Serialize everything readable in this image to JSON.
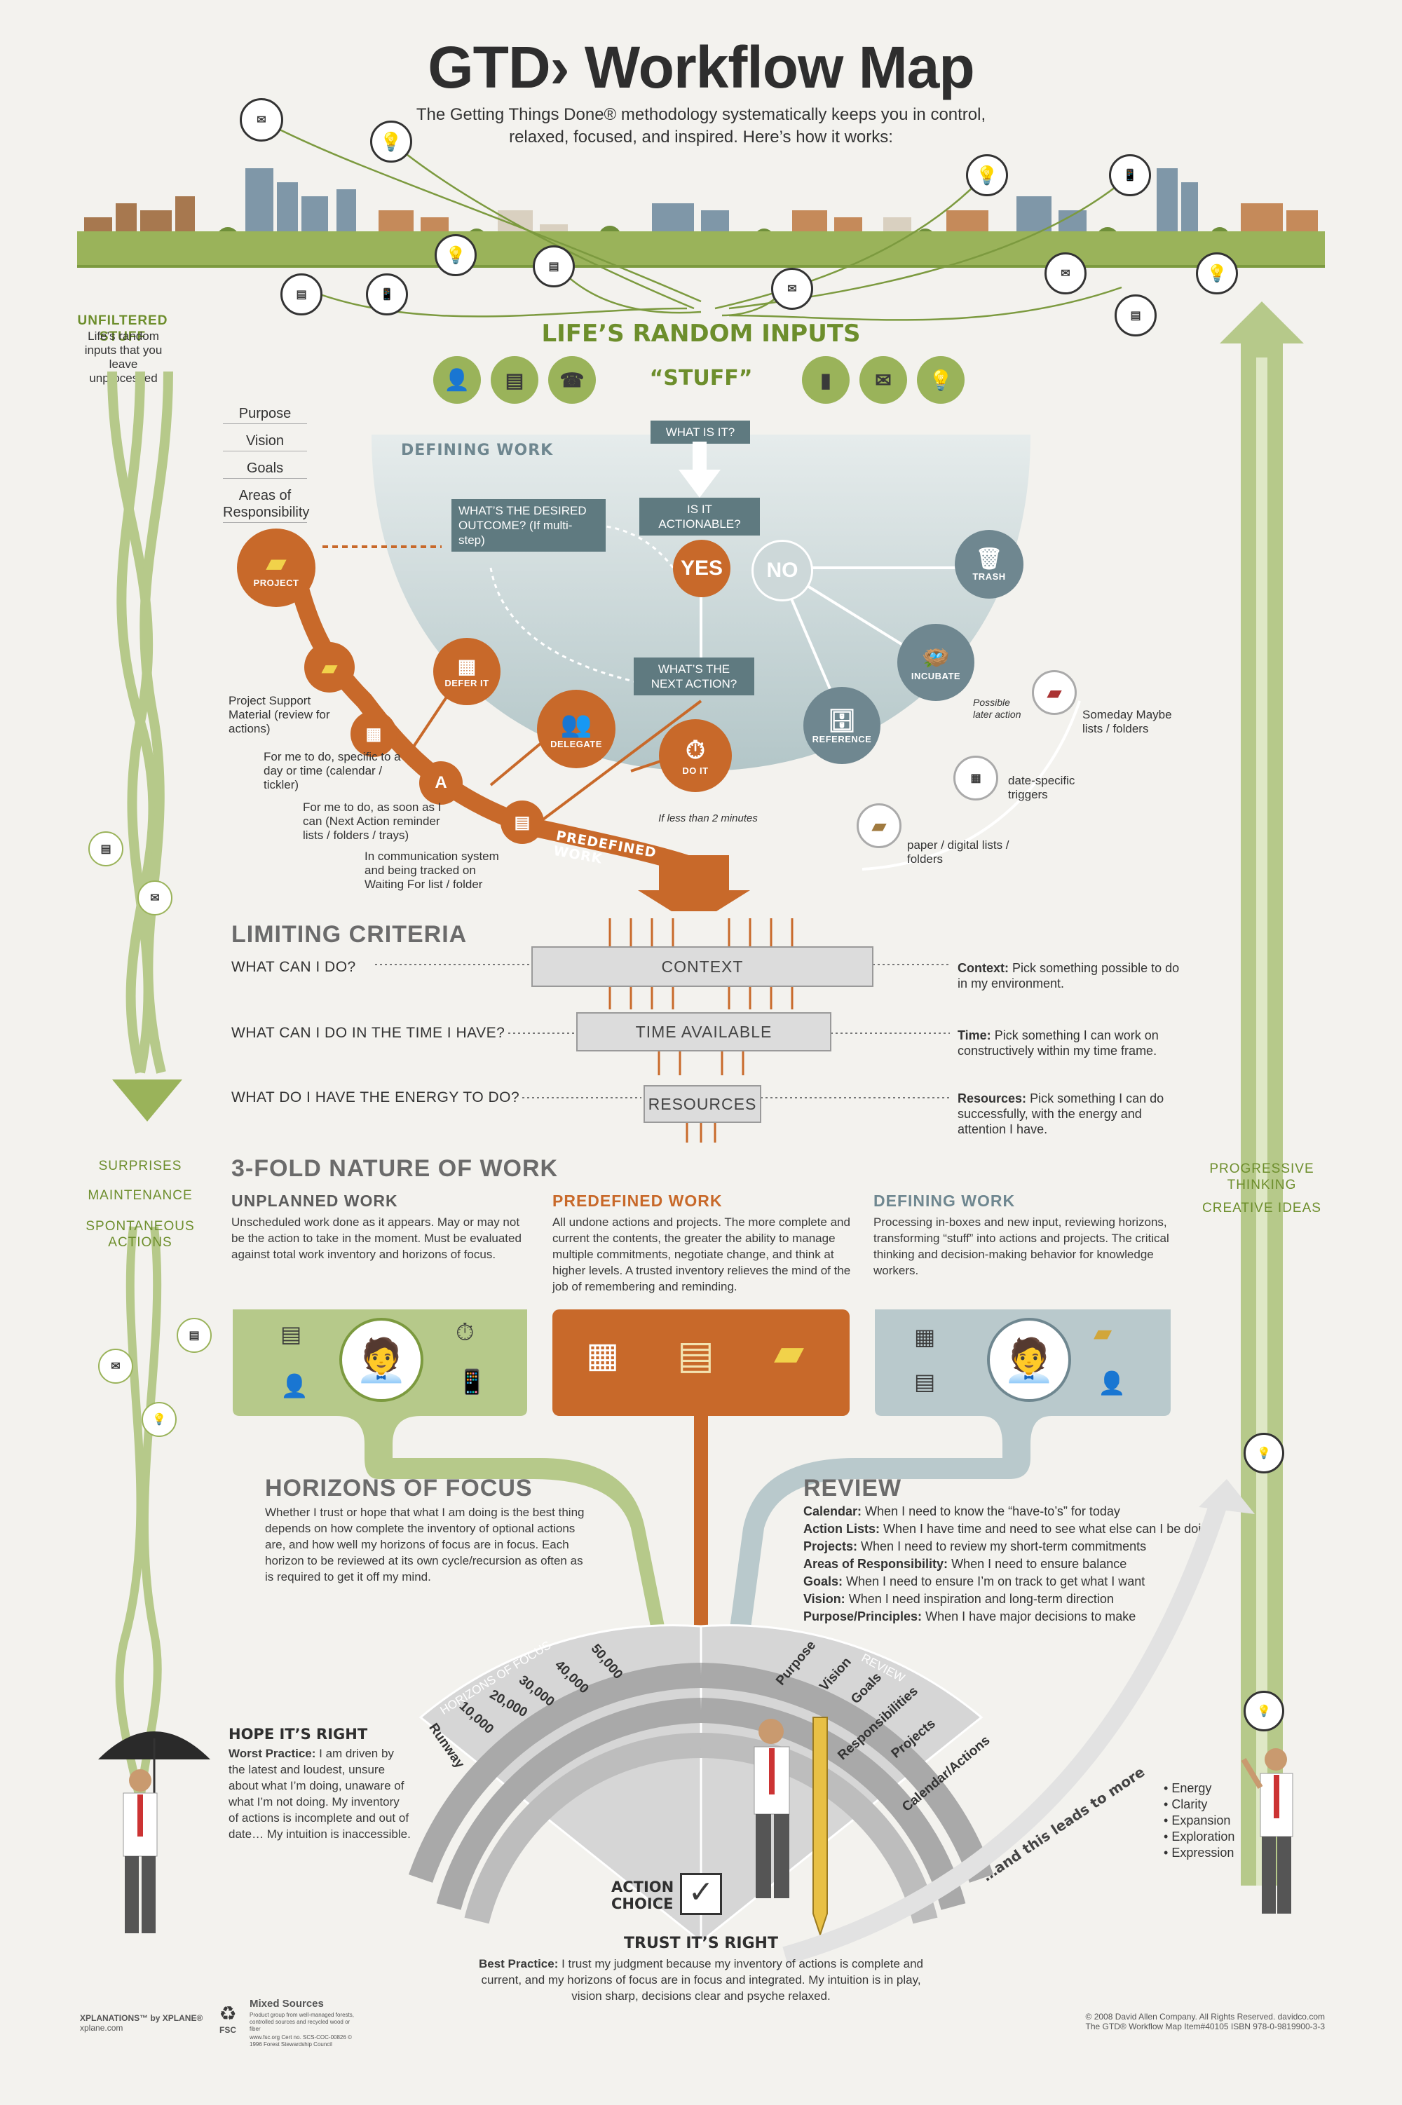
{
  "header": {
    "title": "GTD› Workflow Map",
    "subtitle_line1": "The Getting Things Done® methodology systematically keeps you in control,",
    "subtitle_line2": "relaxed, focused, and inspired. Here’s how it works:"
  },
  "inputs": {
    "unfiltered_title": "UNFILTERED STUFF",
    "unfiltered_desc": "Life’s random inputs that you leave unprocessed",
    "lifes_random_inputs": "LIFE’S RANDOM INPUTS",
    "stuff": "“STUFF”"
  },
  "horizons_list": [
    "Purpose",
    "Vision",
    "Goals",
    "Areas of Responsibility"
  ],
  "defining": {
    "title": "DEFINING WORK",
    "what_is_it": "WHAT IS IT?",
    "is_actionable": "IS IT ACTIONABLE?",
    "desired_outcome": "WHAT’S THE DESIRED OUTCOME? (If multi-step)",
    "next_action": "WHAT’S THE NEXT ACTION?",
    "yes": "YES",
    "no": "NO",
    "trash": "TRASH",
    "incubate": "INCUBATE",
    "reference": "REFERENCE",
    "possible_later": "Possible later action",
    "someday": "Someday Maybe lists / folders",
    "date_triggers": "date-specific triggers",
    "paper_digital": "paper / digital lists / folders",
    "do_it": "DO IT",
    "less_than_2": "If less than 2 minutes",
    "delegate": "DELEGATE",
    "defer_it": "DEFER IT",
    "project": "PROJECT",
    "project_support": "Project Support Material (review for actions)",
    "for_me_day": "For me to do, specific to a day or time (calendar / tickler)",
    "for_me_soon": "For me to do, as soon as I can (Next Action reminder lists / folders / trays)",
    "in_comm": "In communication system and being tracked on Waiting For list / folder",
    "predefined_work": "PREDEFINED WORK"
  },
  "limiting": {
    "title": "LIMITING CRITERIA",
    "q1": "WHAT CAN I DO?",
    "q2": "WHAT CAN I DO IN THE TIME I HAVE?",
    "q3": "WHAT DO I HAVE THE ENERGY TO DO?",
    "bar1": "CONTEXT",
    "bar2": "TIME AVAILABLE",
    "bar3": "RESOURCES",
    "d1_bold": "Context:",
    "d1": "Pick something possible to do in my environment.",
    "d2_bold": "Time:",
    "d2": "Pick something I can work on constructively within my time frame.",
    "d3_bold": "Resources:",
    "d3": "Pick something I can do successfully, with the energy and attention I have."
  },
  "left_side": {
    "surprises": "SURPRISES",
    "maintenance": "MAINTENANCE",
    "spontaneous": "SPONTANEOUS ACTIONS"
  },
  "right_side": {
    "progressive": "PROGRESSIVE THINKING",
    "creative": "CREATIVE IDEAS"
  },
  "threefold": {
    "title": "3-FOLD NATURE OF WORK",
    "unplanned_title": "UNPLANNED WORK",
    "unplanned_text": "Unscheduled work done as it appears. May or may not be the action to take in the moment. Must be evaluated against total work inventory and horizons of focus.",
    "predefined_title": "PREDEFINED WORK",
    "predefined_text": "All undone actions and projects. The more complete and current the contents, the greater the ability to manage multiple commitments, negotiate change, and think at higher levels. A trusted inventory relieves the mind of the job of remembering and reminding.",
    "defining_title": "DEFINING WORK",
    "defining_text": "Processing in-boxes and new input, reviewing horizons, transforming “stuff” into actions and projects. The critical thinking and decision-making behavior for knowledge workers."
  },
  "horizons": {
    "title": "HORIZONS OF FOCUS",
    "text": "Whether I trust or hope that what I am doing is the best thing depends on how complete the inventory of optional actions are, and how well my horizons of focus are in focus. Each horizon to be reviewed at its own cycle/recursion as often as is required to get it off my mind.",
    "arc_label": "HORIZONS OF FOCUS",
    "levels": [
      "Runway",
      "10,000",
      "20,000",
      "30,000",
      "40,000",
      "50,000"
    ]
  },
  "review": {
    "title": "REVIEW",
    "arc_label": "REVIEW",
    "rows": [
      {
        "k": "Calendar:",
        "v": "When I need to know the “have-to’s” for today"
      },
      {
        "k": "Action Lists:",
        "v": "When I have time and need to see what else can I be doing"
      },
      {
        "k": "Projects:",
        "v": "When I need to review my short-term commitments"
      },
      {
        "k": "Areas of Responsibility:",
        "v": "When I need to ensure balance"
      },
      {
        "k": "Goals:",
        "v": "When I need to ensure I’m on track to get what I want"
      },
      {
        "k": "Vision:",
        "v": "When I need inspiration and long-term direction"
      },
      {
        "k": "Purpose/Principles:",
        "v": "When I have major decisions to make"
      }
    ],
    "levels": [
      "Purpose",
      "Vision",
      "Goals",
      "Responsibilities",
      "Projects",
      "Calendar/Actions"
    ]
  },
  "hope": {
    "title": "HOPE IT’S RIGHT",
    "worst_bold": "Worst Practice:",
    "worst": "I am driven by the latest and loudest, unsure about what I’m doing, unaware of what I’m not doing. My inventory of actions is incomplete and out of date… My intuition is inaccessible."
  },
  "trust": {
    "action_choice": "ACTION CHOICE",
    "title": "TRUST IT’S RIGHT",
    "best_bold": "Best Practice:",
    "best": "I trust my judgment because my inventory of actions is complete and current, and my horizons of focus are in focus and integrated. My intuition is in play, vision sharp, decisions clear and psyche relaxed."
  },
  "leads": {
    "text": "…and this leads to more",
    "bullets": [
      "Energy",
      "Clarity",
      "Expansion",
      "Exploration",
      "Expression"
    ]
  },
  "footer": {
    "xplanations": "XPLANATIONS™ by XPLANE®",
    "xplane_url": "xplane.com",
    "fsc": "FSC",
    "mixed": "Mixed Sources",
    "mixed_sub": "Product group from well-managed forests, controlled sources and recycled wood or fiber",
    "fsc_cert": "www.fsc.org  Cert no. SCS-COC-00826  © 1996 Forest Stewardship Council",
    "copyright": "© 2008 David Allen Company.  All Rights Reserved.   davidco.com",
    "item": "The GTD® Workflow Map  Item#40105  ISBN 978-0-9819900-3-3"
  },
  "colors": {
    "green": "#9ab35a",
    "orange": "#c8692a",
    "teal": "#5f7a80",
    "bg": "#f3f2ee"
  }
}
